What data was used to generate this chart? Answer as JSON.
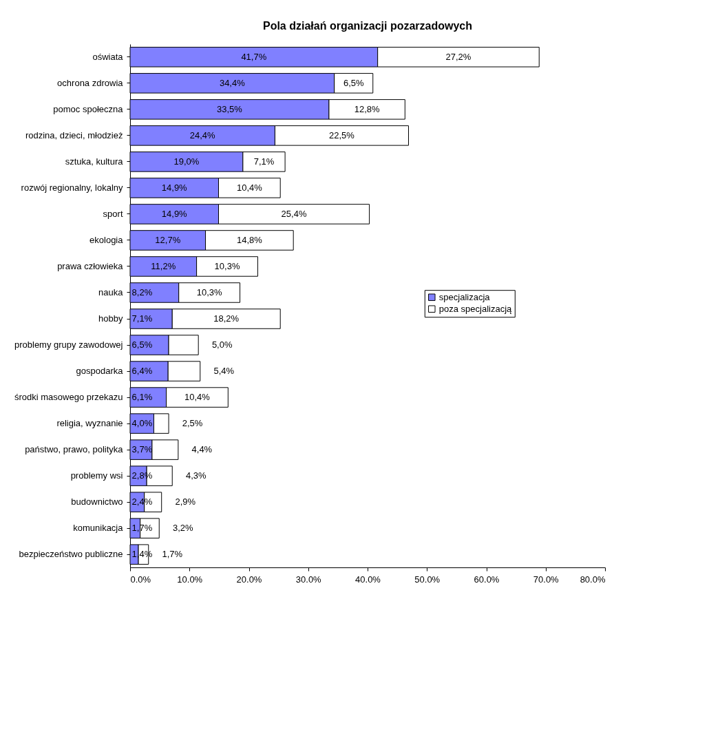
{
  "chart_data": {
    "type": "bar",
    "orientation": "horizontal",
    "stacked": true,
    "title": "Pola działań organizacji pozarzadowych",
    "categories": [
      "oświata",
      "ochrona zdrowia",
      "pomoc społeczna",
      "rodzina, dzieci, młodzież",
      "sztuka, kultura",
      "rozwój regionalny, lokalny",
      "sport",
      "ekologia",
      "prawa człowieka",
      "nauka",
      "hobby",
      "problemy grupy zawodowej",
      "gospodarka",
      "środki masowego przekazu",
      "religia, wyznanie",
      "państwo, prawo, polityka",
      "problemy wsi",
      "budownictwo",
      "komunikacja",
      "bezpieczeństwo publiczne"
    ],
    "series": [
      {
        "name": "specjalizacja",
        "color": "#8080ff",
        "values": [
          41.7,
          34.4,
          33.5,
          24.4,
          19.0,
          14.9,
          14.9,
          12.7,
          11.2,
          8.2,
          7.1,
          6.5,
          6.4,
          6.1,
          4.0,
          3.7,
          2.8,
          2.4,
          1.7,
          1.4
        ],
        "value_labels": [
          "41,7%",
          "34,4%",
          "33,5%",
          "24,4%",
          "19,0%",
          "14,9%",
          "14,9%",
          "12,7%",
          "11,2%",
          "8,2%",
          "7,1%",
          "6,5%",
          "6,4%",
          "6,1%",
          "4,0%",
          "3,7%",
          "2,8%",
          "2,4%",
          "1,7%",
          "1,4%"
        ]
      },
      {
        "name": "poza specjalizacją",
        "color": "#ffffff",
        "values": [
          27.2,
          6.5,
          12.8,
          22.5,
          7.1,
          10.4,
          25.4,
          14.8,
          10.3,
          10.3,
          18.2,
          5.0,
          5.4,
          10.4,
          2.5,
          4.4,
          4.3,
          2.9,
          3.2,
          1.7
        ],
        "value_labels": [
          "27,2%",
          "6,5%",
          "12,8%",
          "22,5%",
          "7,1%",
          "10,4%",
          "25,4%",
          "14,8%",
          "10,3%",
          "10,3%",
          "18,2%",
          "5,0%",
          "5,4%",
          "10,4%",
          "2,5%",
          "4,4%",
          "4,3%",
          "2,9%",
          "3,2%",
          "1,7%"
        ]
      }
    ],
    "xlim": [
      0,
      80
    ],
    "xticks": [
      {
        "value": 0,
        "label": "0.0%"
      },
      {
        "value": 10,
        "label": "10.0%"
      },
      {
        "value": 20,
        "label": "20.0%"
      },
      {
        "value": 30,
        "label": "30.0%"
      },
      {
        "value": 40,
        "label": "40.0%"
      },
      {
        "value": 50,
        "label": "50.0%"
      },
      {
        "value": 60,
        "label": "60.0%"
      },
      {
        "value": 70,
        "label": "70.0%"
      },
      {
        "value": 80,
        "label": "80.0%"
      }
    ],
    "grid": false,
    "legend": "right"
  }
}
